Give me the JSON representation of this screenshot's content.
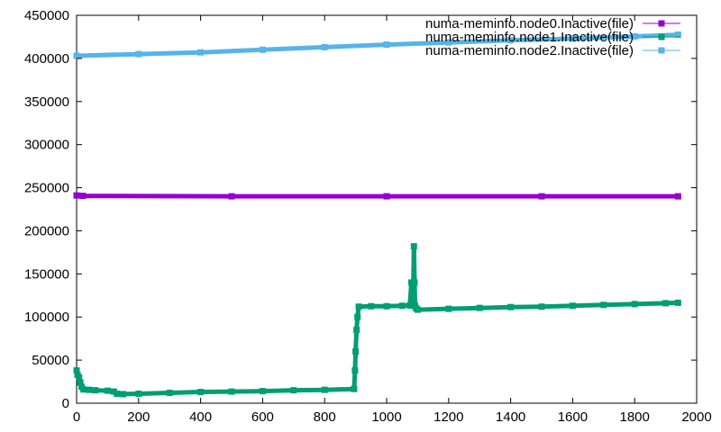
{
  "chart_data": {
    "type": "line",
    "title": "",
    "xlabel": "",
    "ylabel": "",
    "xlim": [
      0,
      2000
    ],
    "ylim": [
      0,
      450000
    ],
    "x_ticks": [
      0,
      200,
      400,
      600,
      800,
      1000,
      1200,
      1400,
      1600,
      1800,
      2000
    ],
    "y_ticks": [
      0,
      50000,
      100000,
      150000,
      200000,
      250000,
      300000,
      350000,
      400000,
      450000
    ],
    "legend_position": "top-right",
    "grid": false,
    "series": [
      {
        "name": "numa-meminfo.node0.Inactive(file)",
        "color": "#9400d3",
        "marker": "square",
        "points": [
          [
            0,
            241000
          ],
          [
            20,
            240500
          ],
          [
            500,
            240000
          ],
          [
            1000,
            240000
          ],
          [
            1500,
            240000
          ],
          [
            1940,
            240000
          ]
        ]
      },
      {
        "name": "numa-meminfo.node1.Inactive(file)",
        "color": "#009e73",
        "marker": "square",
        "points": [
          [
            0,
            38000
          ],
          [
            3,
            33000
          ],
          [
            8,
            30000
          ],
          [
            12,
            24000
          ],
          [
            16,
            19000
          ],
          [
            22,
            16000
          ],
          [
            40,
            15500
          ],
          [
            60,
            15000
          ],
          [
            100,
            14500
          ],
          [
            120,
            13500
          ],
          [
            130,
            11000
          ],
          [
            150,
            10500
          ],
          [
            200,
            11000
          ],
          [
            300,
            12000
          ],
          [
            400,
            13000
          ],
          [
            500,
            13500
          ],
          [
            600,
            14000
          ],
          [
            700,
            15000
          ],
          [
            800,
            15500
          ],
          [
            895,
            16500
          ],
          [
            898,
            38000
          ],
          [
            900,
            60000
          ],
          [
            903,
            85000
          ],
          [
            906,
            100000
          ],
          [
            910,
            112000
          ],
          [
            950,
            112500
          ],
          [
            1000,
            112500
          ],
          [
            1050,
            113000
          ],
          [
            1075,
            113500
          ],
          [
            1080,
            140000
          ],
          [
            1085,
            113000
          ],
          [
            1088,
            182000
          ],
          [
            1090,
            140000
          ],
          [
            1092,
            113000
          ],
          [
            1095,
            110000
          ],
          [
            1100,
            108500
          ],
          [
            1200,
            109500
          ],
          [
            1300,
            110500
          ],
          [
            1400,
            111500
          ],
          [
            1500,
            112000
          ],
          [
            1600,
            113000
          ],
          [
            1700,
            114000
          ],
          [
            1800,
            115000
          ],
          [
            1900,
            116000
          ],
          [
            1940,
            116500
          ]
        ]
      },
      {
        "name": "numa-meminfo.node2.Inactive(file)",
        "color": "#56b4e9",
        "marker": "square",
        "points": [
          [
            0,
            403000
          ],
          [
            200,
            405000
          ],
          [
            400,
            407000
          ],
          [
            600,
            410000
          ],
          [
            800,
            413000
          ],
          [
            1000,
            416000
          ],
          [
            1200,
            418500
          ],
          [
            1400,
            421000
          ],
          [
            1600,
            423000
          ],
          [
            1800,
            425500
          ],
          [
            1940,
            427500
          ]
        ]
      }
    ]
  }
}
